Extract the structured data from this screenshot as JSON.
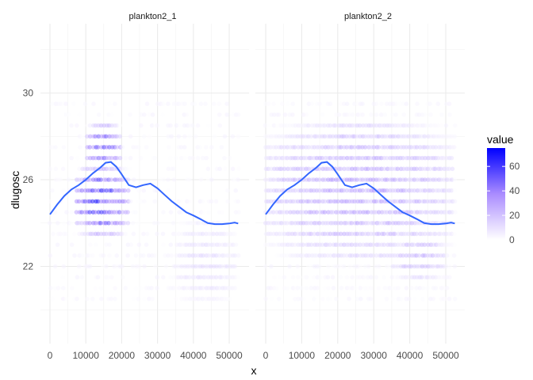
{
  "chart_data": {
    "type": "scatter",
    "xlabel": "x",
    "ylabel": "dlugosc",
    "x_range": [
      -1500,
      55500
    ],
    "y_range": [
      19.2,
      32.6
    ],
    "x_ticks": [
      0,
      10000,
      20000,
      30000,
      40000,
      50000
    ],
    "x_tick_labels": [
      "0",
      "10000",
      "20000",
      "30000",
      "40000",
      "50000"
    ],
    "y_ticks": [
      22,
      26,
      30
    ],
    "y_tick_labels": [
      "22",
      "26",
      "30"
    ],
    "grid": true,
    "facets": [
      {
        "title": "plankton2_1",
        "point_intensity": [
          {
            "y_from": 23.5,
            "y_to": 26.5,
            "x_from": 7000,
            "x_to": 22000,
            "peak_value": 75
          },
          {
            "y_from": 26.5,
            "y_to": 28.5,
            "x_from": 10000,
            "x_to": 20000,
            "peak_value": 60
          },
          {
            "y_from": 20.5,
            "y_to": 24.0,
            "x_from": 35000,
            "x_to": 52000,
            "peak_value": 15
          }
        ]
      },
      {
        "title": "plankton2_2",
        "point_intensity": [
          {
            "y_from": 22.5,
            "y_to": 28.5,
            "x_from": 0,
            "x_to": 52000,
            "peak_value": 35
          },
          {
            "y_from": 21.5,
            "y_to": 23.5,
            "x_from": 35000,
            "x_to": 50000,
            "peak_value": 30
          }
        ]
      }
    ],
    "smooth_line": {
      "x": [
        0,
        2000,
        4000,
        6000,
        8000,
        10000,
        12000,
        14000,
        15500,
        17000,
        18500,
        20000,
        22000,
        24000,
        26000,
        28000,
        30000,
        32000,
        34000,
        36000,
        38000,
        40000,
        42000,
        44000,
        46000,
        48000,
        50000,
        51500,
        52500
      ],
      "y": [
        24.4,
        24.85,
        25.25,
        25.55,
        25.75,
        26.0,
        26.3,
        26.55,
        26.78,
        26.82,
        26.6,
        26.25,
        25.75,
        25.65,
        25.75,
        25.82,
        25.6,
        25.3,
        25.0,
        24.75,
        24.5,
        24.35,
        24.18,
        24.0,
        23.95,
        23.95,
        23.98,
        24.02,
        23.98
      ],
      "color": "#3366FF"
    },
    "legend": {
      "title": "value",
      "position": "right",
      "scale": [
        0,
        75
      ],
      "ticks": [
        0,
        20,
        40,
        60
      ],
      "tick_labels": [
        "0",
        "20",
        "40",
        "60"
      ],
      "low_color": "#FFFFFF",
      "high_color": "#0000FF"
    }
  }
}
